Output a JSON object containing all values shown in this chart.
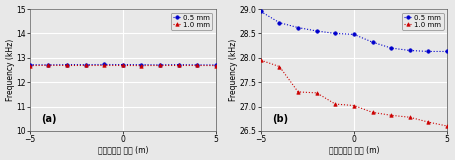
{
  "xlabel": "누수공과의 거리 (m)",
  "ylabel_a": "Frequency (kHz)",
  "ylabel_b": "Frequency (kHz)",
  "label_a": "(a)",
  "label_b": "(b)",
  "legend_labels": [
    "0.5 mm",
    "1.0 mm"
  ],
  "x": [
    -5,
    -4,
    -3,
    -2,
    -1,
    0,
    1,
    2,
    3,
    4,
    5
  ],
  "a_blue": [
    12.72,
    12.71,
    12.72,
    12.72,
    12.725,
    12.72,
    12.72,
    12.71,
    12.72,
    12.71,
    12.71
  ],
  "a_red": [
    12.68,
    12.69,
    12.685,
    12.685,
    12.685,
    12.685,
    12.68,
    12.685,
    12.685,
    12.685,
    12.68
  ],
  "b_blue": [
    28.95,
    28.72,
    28.62,
    28.55,
    28.5,
    28.48,
    28.32,
    28.2,
    28.15,
    28.13,
    28.13
  ],
  "b_red": [
    27.95,
    27.82,
    27.3,
    27.28,
    27.05,
    27.02,
    26.88,
    26.82,
    26.78,
    26.68,
    26.6
  ],
  "a_ylim": [
    10,
    15
  ],
  "b_ylim": [
    26.5,
    29.0
  ],
  "xlim": [
    -5,
    5
  ],
  "color_blue": "#0000CC",
  "color_red": "#CC0000",
  "bg_color": "#E8E8E8",
  "grid_color": "#FFFFFF",
  "tick_fontsize": 5.5,
  "label_fontsize": 5.5,
  "legend_fontsize": 5,
  "a_yticks": [
    10,
    11,
    12,
    13,
    14,
    15
  ],
  "b_yticks": [
    26.5,
    27.0,
    27.5,
    28.0,
    28.5,
    29.0
  ],
  "xticks": [
    -5,
    0,
    5
  ]
}
